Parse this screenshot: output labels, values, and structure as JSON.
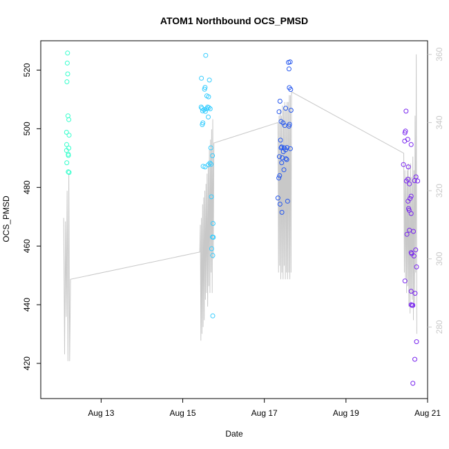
{
  "chart_data": {
    "type": "scatter",
    "title": "ATOM1 Northbound OCS_PMSD",
    "xlabel": "Date",
    "ylabel": "OCS_PMSD",
    "xlim": [
      "2024-08-11T12:30",
      "2024-08-21T00:00"
    ],
    "ylim": [
      408,
      530
    ],
    "y2lim": [
      259,
      364
    ],
    "x_ticks": [
      {
        "label": "Aug 13",
        "x": "2024-08-13T00:00"
      },
      {
        "label": "Aug 15",
        "x": "2024-08-15T00:00"
      },
      {
        "label": "Aug 17",
        "x": "2024-08-17T00:00"
      },
      {
        "label": "Aug 19",
        "x": "2024-08-19T00:00"
      },
      {
        "label": "Aug 21",
        "x": "2024-08-21T00:00"
      }
    ],
    "y_ticks": [
      420,
      440,
      460,
      480,
      500,
      520
    ],
    "y2_ticks": [
      280,
      300,
      320,
      340,
      360
    ],
    "grid": false,
    "series": [
      {
        "color": "#33ffcc",
        "points": [
          [
            "2024-08-12T04:15",
            525.8
          ],
          [
            "2024-08-12T04:05",
            522.4
          ],
          [
            "2024-08-12T04:20",
            518.7
          ],
          [
            "2024-08-12T03:55",
            516.0
          ],
          [
            "2024-08-12T04:30",
            504.4
          ],
          [
            "2024-08-12T05:00",
            503.1
          ],
          [
            "2024-08-12T03:40",
            498.8
          ],
          [
            "2024-08-12T05:10",
            497.8
          ],
          [
            "2024-08-12T03:45",
            494.6
          ],
          [
            "2024-08-12T05:00",
            493.4
          ],
          [
            "2024-08-12T03:40",
            492.6
          ],
          [
            "2024-08-12T04:40",
            491.3
          ],
          [
            "2024-08-12T04:45",
            490.9
          ],
          [
            "2024-08-12T03:50",
            488.4
          ],
          [
            "2024-08-12T04:40",
            485.3
          ],
          [
            "2024-08-12T05:10",
            485.1
          ]
        ]
      },
      {
        "color": "#33ccff",
        "points": [
          [
            "2024-08-15T13:30",
            525.0
          ],
          [
            "2024-08-15T11:00",
            517.2
          ],
          [
            "2024-08-15T15:40",
            516.6
          ],
          [
            "2024-08-15T13:10",
            514.1
          ],
          [
            "2024-08-15T12:50",
            513.5
          ],
          [
            "2024-08-15T14:10",
            511.2
          ],
          [
            "2024-08-15T15:10",
            510.9
          ],
          [
            "2024-08-15T10:50",
            507.4
          ],
          [
            "2024-08-15T14:40",
            507.4
          ],
          [
            "2024-08-15T15:20",
            507.2
          ],
          [
            "2024-08-15T11:20",
            507.0
          ],
          [
            "2024-08-15T14:00",
            506.8
          ],
          [
            "2024-08-15T12:30",
            506.5
          ],
          [
            "2024-08-15T16:10",
            506.8
          ],
          [
            "2024-08-15T11:40",
            506.1
          ],
          [
            "2024-08-15T13:20",
            505.9
          ],
          [
            "2024-08-15T15:00",
            504.0
          ],
          [
            "2024-08-15T11:50",
            502.0
          ],
          [
            "2024-08-15T11:30",
            501.4
          ],
          [
            "2024-08-15T16:30",
            493.5
          ],
          [
            "2024-08-15T17:30",
            490.8
          ],
          [
            "2024-08-15T16:00",
            488.3
          ],
          [
            "2024-08-15T16:40",
            487.9
          ],
          [
            "2024-08-15T12:00",
            487.2
          ],
          [
            "2024-08-15T13:10",
            487.0
          ],
          [
            "2024-08-15T15:00",
            487.7
          ],
          [
            "2024-08-15T16:50",
            476.8
          ],
          [
            "2024-08-15T17:50",
            467.7
          ],
          [
            "2024-08-15T17:30",
            463.1
          ],
          [
            "2024-08-15T18:00",
            463.0
          ],
          [
            "2024-08-15T17:00",
            459.1
          ],
          [
            "2024-08-15T17:40",
            456.8
          ],
          [
            "2024-08-15T17:40",
            436.2
          ]
        ]
      },
      {
        "color": "#2255ee",
        "points": [
          [
            "2024-08-17T15:10",
            522.8
          ],
          [
            "2024-08-17T14:10",
            522.6
          ],
          [
            "2024-08-17T14:30",
            520.4
          ],
          [
            "2024-08-17T14:40",
            514.0
          ],
          [
            "2024-08-17T15:30",
            513.4
          ],
          [
            "2024-08-17T09:10",
            509.4
          ],
          [
            "2024-08-17T12:30",
            507.0
          ],
          [
            "2024-08-17T15:40",
            506.3
          ],
          [
            "2024-08-17T08:40",
            505.8
          ],
          [
            "2024-08-17T09:50",
            502.5
          ],
          [
            "2024-08-17T11:00",
            502.0
          ],
          [
            "2024-08-17T14:50",
            501.5
          ],
          [
            "2024-08-17T12:00",
            501.1
          ],
          [
            "2024-08-17T14:30",
            500.9
          ],
          [
            "2024-08-17T09:30",
            496.1
          ],
          [
            "2024-08-17T10:10",
            493.8
          ],
          [
            "2024-08-17T09:50",
            493.5
          ],
          [
            "2024-08-17T11:40",
            493.5
          ],
          [
            "2024-08-17T15:20",
            493.2
          ],
          [
            "2024-08-17T13:20",
            493.6
          ],
          [
            "2024-08-17T12:30",
            492.8
          ],
          [
            "2024-08-17T11:10",
            492.2
          ],
          [
            "2024-08-17T08:50",
            490.5
          ],
          [
            "2024-08-17T10:30",
            490.1
          ],
          [
            "2024-08-17T12:40",
            489.8
          ],
          [
            "2024-08-17T13:10",
            489.5
          ],
          [
            "2024-08-17T10:10",
            488.4
          ],
          [
            "2024-08-17T11:30",
            486.0
          ],
          [
            "2024-08-17T09:00",
            484.0
          ],
          [
            "2024-08-17T08:30",
            483.2
          ],
          [
            "2024-08-17T08:00",
            476.4
          ],
          [
            "2024-08-17T13:40",
            475.3
          ],
          [
            "2024-08-17T09:10",
            474.3
          ],
          [
            "2024-08-17T10:20",
            471.5
          ]
        ]
      },
      {
        "color": "#7722ee",
        "points": [
          [
            "2024-08-20T11:20",
            506.0
          ],
          [
            "2024-08-20T11:00",
            499.2
          ],
          [
            "2024-08-20T10:40",
            498.6
          ],
          [
            "2024-08-20T12:20",
            496.4
          ],
          [
            "2024-08-20T10:30",
            495.8
          ],
          [
            "2024-08-20T14:20",
            494.6
          ],
          [
            "2024-08-20T09:50",
            487.8
          ],
          [
            "2024-08-20T12:40",
            487.0
          ],
          [
            "2024-08-20T17:10",
            483.6
          ],
          [
            "2024-08-20T12:30",
            482.8
          ],
          [
            "2024-08-20T11:30",
            482.2
          ],
          [
            "2024-08-20T18:10",
            482.2
          ],
          [
            "2024-08-20T16:20",
            482.3
          ],
          [
            "2024-08-20T13:20",
            481.2
          ],
          [
            "2024-08-20T14:20",
            477.0
          ],
          [
            "2024-08-20T13:40",
            476.2
          ],
          [
            "2024-08-20T12:30",
            475.3
          ],
          [
            "2024-08-20T12:50",
            472.8
          ],
          [
            "2024-08-20T13:10",
            472.2
          ],
          [
            "2024-08-20T14:20",
            471.1
          ],
          [
            "2024-08-20T15:40",
            465.0
          ],
          [
            "2024-08-20T13:20",
            465.4
          ],
          [
            "2024-08-20T11:50",
            464.0
          ],
          [
            "2024-08-20T17:00",
            458.7
          ],
          [
            "2024-08-20T14:20",
            457.8
          ],
          [
            "2024-08-20T14:40",
            457.4
          ],
          [
            "2024-08-20T16:00",
            456.6
          ],
          [
            "2024-08-20T17:30",
            452.9
          ],
          [
            "2024-08-20T10:40",
            448.1
          ],
          [
            "2024-08-20T14:20",
            444.6
          ],
          [
            "2024-08-20T16:40",
            443.9
          ],
          [
            "2024-08-20T14:20",
            440.0
          ],
          [
            "2024-08-20T14:50",
            439.8
          ],
          [
            "2024-08-20T15:20",
            439.8
          ],
          [
            "2024-08-20T17:30",
            427.4
          ],
          [
            "2024-08-20T16:30",
            421.4
          ],
          [
            "2024-08-20T15:20",
            413.2
          ]
        ]
      }
    ],
    "secondary_line": {
      "color": "#c8c8c8",
      "axis": "right",
      "points": [
        [
          "2024-08-12T02:00",
          312
        ],
        [
          "2024-08-12T02:30",
          272
        ],
        [
          "2024-08-12T03:00",
          311
        ],
        [
          "2024-08-12T03:30",
          283
        ],
        [
          "2024-08-12T04:00",
          320
        ],
        [
          "2024-08-12T04:30",
          270
        ],
        [
          "2024-08-12T05:00",
          325
        ],
        [
          "2024-08-12T05:30",
          270
        ],
        [
          "2024-08-12T06:00",
          294
        ],
        [
          "2024-08-15T10:00",
          302
        ],
        [
          "2024-08-15T10:20",
          310
        ],
        [
          "2024-08-15T10:40",
          276
        ],
        [
          "2024-08-15T11:00",
          312
        ],
        [
          "2024-08-15T11:20",
          278
        ],
        [
          "2024-08-15T11:40",
          316
        ],
        [
          "2024-08-15T12:00",
          280
        ],
        [
          "2024-08-15T12:20",
          318
        ],
        [
          "2024-08-15T12:40",
          282
        ],
        [
          "2024-08-15T13:00",
          320
        ],
        [
          "2024-08-15T13:20",
          288
        ],
        [
          "2024-08-15T13:40",
          322
        ],
        [
          "2024-08-15T14:00",
          290
        ],
        [
          "2024-08-15T14:20",
          325
        ],
        [
          "2024-08-15T14:40",
          286
        ],
        [
          "2024-08-15T15:00",
          328
        ],
        [
          "2024-08-15T15:20",
          292
        ],
        [
          "2024-08-15T15:40",
          332
        ],
        [
          "2024-08-15T16:00",
          290
        ],
        [
          "2024-08-15T16:20",
          335
        ],
        [
          "2024-08-15T16:40",
          296
        ],
        [
          "2024-08-15T17:00",
          338
        ],
        [
          "2024-08-15T17:20",
          290
        ],
        [
          "2024-08-15T17:40",
          341
        ],
        [
          "2024-08-15T18:00",
          300
        ],
        [
          "2024-08-15T18:20",
          334
        ],
        [
          "2024-08-17T08:00",
          340
        ],
        [
          "2024-08-17T08:20",
          296
        ],
        [
          "2024-08-17T08:40",
          342
        ],
        [
          "2024-08-17T09:00",
          298
        ],
        [
          "2024-08-17T09:20",
          344
        ],
        [
          "2024-08-17T09:40",
          294
        ],
        [
          "2024-08-17T10:00",
          342
        ],
        [
          "2024-08-17T10:20",
          296
        ],
        [
          "2024-08-17T10:40",
          345
        ],
        [
          "2024-08-17T11:00",
          294
        ],
        [
          "2024-08-17T11:20",
          344
        ],
        [
          "2024-08-17T11:40",
          298
        ],
        [
          "2024-08-17T12:00",
          346
        ],
        [
          "2024-08-17T12:20",
          294
        ],
        [
          "2024-08-17T12:40",
          344
        ],
        [
          "2024-08-17T13:00",
          296
        ],
        [
          "2024-08-17T13:20",
          346
        ],
        [
          "2024-08-17T13:40",
          294
        ],
        [
          "2024-08-17T14:00",
          346
        ],
        [
          "2024-08-17T14:20",
          296
        ],
        [
          "2024-08-17T14:40",
          348
        ],
        [
          "2024-08-17T15:00",
          294
        ],
        [
          "2024-08-17T15:20",
          348
        ],
        [
          "2024-08-17T15:40",
          296
        ],
        [
          "2024-08-17T16:00",
          349
        ],
        [
          "2024-08-20T10:00",
          331
        ],
        [
          "2024-08-20T10:20",
          296
        ],
        [
          "2024-08-20T10:40",
          326
        ],
        [
          "2024-08-20T11:00",
          294
        ],
        [
          "2024-08-20T11:20",
          324
        ],
        [
          "2024-08-20T11:40",
          290
        ],
        [
          "2024-08-20T12:00",
          326
        ],
        [
          "2024-08-20T12:20",
          292
        ],
        [
          "2024-08-20T12:40",
          328
        ],
        [
          "2024-08-20T13:00",
          286
        ],
        [
          "2024-08-20T13:20",
          324
        ],
        [
          "2024-08-20T13:40",
          284
        ],
        [
          "2024-08-20T14:00",
          328
        ],
        [
          "2024-08-20T14:20",
          290
        ],
        [
          "2024-08-20T14:40",
          324
        ],
        [
          "2024-08-20T15:00",
          288
        ],
        [
          "2024-08-20T15:20",
          330
        ],
        [
          "2024-08-20T15:40",
          282
        ],
        [
          "2024-08-20T16:00",
          326
        ],
        [
          "2024-08-20T16:20",
          286
        ],
        [
          "2024-08-20T16:40",
          342
        ],
        [
          "2024-08-20T17:00",
          296
        ],
        [
          "2024-08-20T17:20",
          360
        ],
        [
          "2024-08-20T17:40",
          278
        ]
      ]
    }
  }
}
